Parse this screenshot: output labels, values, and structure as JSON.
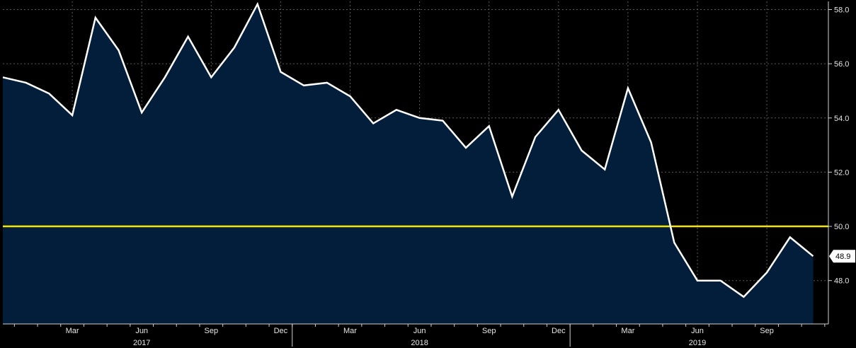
{
  "chart_data": {
    "type": "area",
    "title": "",
    "xlabel": "",
    "ylabel": "",
    "ylim": [
      46.4,
      58.3
    ],
    "y_ticks": [
      "48.0",
      "50.0",
      "52.0",
      "54.0",
      "56.0",
      "58.0"
    ],
    "reference_line": {
      "value": 50.0,
      "color": "#f2e600"
    },
    "last_value_label": "48.9",
    "x_ticks": [
      "Mar",
      "Jun",
      "Sep",
      "Dec",
      "Mar",
      "Jun",
      "Sep",
      "Dec",
      "Mar",
      "Jun",
      "Sep"
    ],
    "year_labels": [
      "2017",
      "2018",
      "2019"
    ],
    "x": [
      "2016-12",
      "2017-01",
      "2017-02",
      "2017-03",
      "2017-04",
      "2017-05",
      "2017-06",
      "2017-07",
      "2017-08",
      "2017-09",
      "2017-10",
      "2017-11",
      "2017-12",
      "2018-01",
      "2018-02",
      "2018-03",
      "2018-04",
      "2018-05",
      "2018-06",
      "2018-07",
      "2018-08",
      "2018-09",
      "2018-10",
      "2018-11",
      "2018-12",
      "2019-01",
      "2019-02",
      "2019-03",
      "2019-04",
      "2019-05",
      "2019-06",
      "2019-07",
      "2019-08",
      "2019-09",
      "2019-10",
      "2019-11"
    ],
    "series": [
      {
        "values": [
          55.5,
          55.3,
          54.9,
          54.1,
          57.7,
          56.5,
          54.2,
          55.5,
          57.0,
          55.5,
          56.6,
          58.2,
          55.7,
          55.2,
          55.3,
          54.8,
          53.8,
          54.3,
          54.0,
          53.9,
          52.9,
          53.7,
          51.1,
          53.3,
          54.3,
          52.8,
          52.1,
          55.1,
          53.1,
          49.4,
          48.0,
          48.0,
          47.4,
          48.3,
          49.6,
          48.9
        ]
      }
    ],
    "colors": {
      "background": "#000000",
      "area_fill": "#021e3b",
      "line": "#ffffff",
      "grid": "#5a5a5a",
      "reference": "#f2e600"
    },
    "grid": true,
    "legend": "none"
  }
}
